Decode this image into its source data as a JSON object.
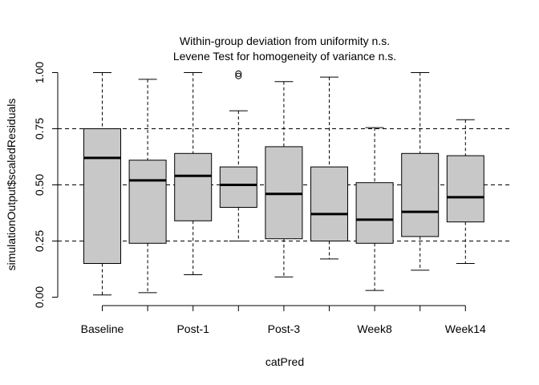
{
  "chart_data": {
    "type": "boxplot",
    "title_lines": [
      "Within-group deviation from uniformity n.s.",
      "Levene Test for homogeneity of variance n.s."
    ],
    "xlabel": "catPred",
    "ylabel": "simulationOutput$scaledResiduals",
    "ylim": [
      0,
      1
    ],
    "y_ticks": [
      "0.00",
      "0.25",
      "0.50",
      "0.75",
      "1.00"
    ],
    "y_tick_values": [
      0,
      0.25,
      0.5,
      0.75,
      1
    ],
    "reference_lines": [
      0.25,
      0.5,
      0.75
    ],
    "x_tick_labels_shown": [
      "Baseline",
      "Post-1",
      "Post-3",
      "Week8",
      "Week14"
    ],
    "boxes": [
      {
        "position": 1,
        "label": "Baseline",
        "min": 0.01,
        "q1": 0.15,
        "median": 0.62,
        "q3": 0.75,
        "max": 1.0,
        "outliers": []
      },
      {
        "position": 2,
        "label": "",
        "min": 0.02,
        "q1": 0.24,
        "median": 0.52,
        "q3": 0.61,
        "max": 0.97,
        "outliers": []
      },
      {
        "position": 3,
        "label": "Post-1",
        "min": 0.1,
        "q1": 0.34,
        "median": 0.54,
        "q3": 0.64,
        "max": 1.0,
        "outliers": []
      },
      {
        "position": 4,
        "label": "",
        "min": 0.25,
        "q1": 0.4,
        "median": 0.5,
        "q3": 0.58,
        "max": 0.83,
        "outliers": [
          0.985,
          0.995
        ]
      },
      {
        "position": 5,
        "label": "Post-3",
        "min": 0.09,
        "q1": 0.26,
        "median": 0.46,
        "q3": 0.67,
        "max": 0.96,
        "outliers": []
      },
      {
        "position": 6,
        "label": "",
        "min": 0.17,
        "q1": 0.25,
        "median": 0.37,
        "q3": 0.58,
        "max": 0.98,
        "outliers": []
      },
      {
        "position": 7,
        "label": "Week8",
        "min": 0.03,
        "q1": 0.24,
        "median": 0.345,
        "q3": 0.51,
        "max": 0.755,
        "outliers": []
      },
      {
        "position": 8,
        "label": "",
        "min": 0.12,
        "q1": 0.27,
        "median": 0.38,
        "q3": 0.64,
        "max": 1.0,
        "outliers": []
      },
      {
        "position": 9,
        "label": "Week14",
        "min": 0.15,
        "q1": 0.335,
        "median": 0.445,
        "q3": 0.63,
        "max": 0.79,
        "outliers": []
      }
    ],
    "box_fill": "#c8c8c8",
    "grid": false
  }
}
